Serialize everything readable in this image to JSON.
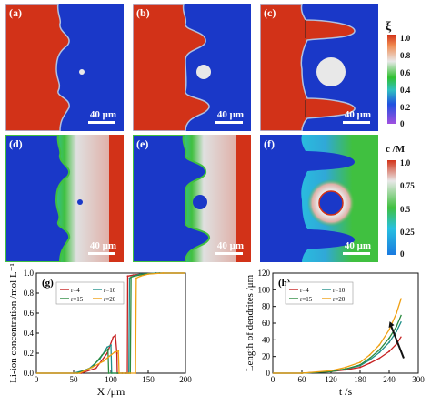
{
  "field_panels": [
    {
      "label": "(a)",
      "scale": "40 μm"
    },
    {
      "label": "(b)",
      "scale": "40 μm"
    },
    {
      "label": "(c)",
      "scale": "40 μm"
    },
    {
      "label": "(d)",
      "scale": "40 μm"
    },
    {
      "label": "(e)",
      "scale": "40 μm"
    },
    {
      "label": "(f)",
      "scale": "40 μm"
    }
  ],
  "colorbar_xi": {
    "title": "ξ",
    "ticks": [
      "1.0",
      "0.8",
      "0.6",
      "0.4",
      "0.2",
      "0"
    ]
  },
  "colorbar_c": {
    "title": "c /M",
    "ticks": [
      "1.0",
      "0.75",
      "0.5",
      "0.25",
      "0"
    ]
  },
  "colors": {
    "electrode": "#d23218",
    "electrolyte": "#1a38c8",
    "r4": "#c62020",
    "r10": "#20908a",
    "r15": "#2a8a3e",
    "r20": "#f0a012"
  },
  "chart_data": [
    {
      "type": "line",
      "panel": "(g)",
      "xlabel": "X /μm",
      "ylabel": "Li-ion concentration /mol L⁻¹",
      "xlim": [
        0,
        200
      ],
      "ylim": [
        0,
        1.0
      ],
      "xticks": [
        "0",
        "50",
        "100",
        "150",
        "200"
      ],
      "yticks": [
        "0.0",
        "0.2",
        "0.4",
        "0.6",
        "0.8",
        "1.0"
      ],
      "legend": "top-left",
      "series": [
        {
          "name": "r=4",
          "x": [
            0,
            60,
            80,
            95,
            103,
            106,
            108,
            108.5,
            115,
            120,
            122,
            122.5,
            130,
            140,
            160,
            200
          ],
          "y": [
            0,
            0,
            0.05,
            0.2,
            0.36,
            0.38,
            0.2,
            0,
            0,
            0,
            0,
            0.97,
            0.98,
            0.99,
            1.0,
            1.0
          ]
        },
        {
          "name": "r=10",
          "x": [
            0,
            50,
            70,
            85,
            95,
            100,
            101,
            110,
            124,
            125,
            130,
            140,
            160,
            200
          ],
          "y": [
            0,
            0,
            0.04,
            0.14,
            0.26,
            0.28,
            0,
            0,
            0,
            0.95,
            0.97,
            0.99,
            1.0,
            1.0
          ]
        },
        {
          "name": "r=15",
          "x": [
            0,
            55,
            75,
            88,
            96,
            97,
            110,
            126,
            127,
            132,
            145,
            165,
            200
          ],
          "y": [
            0,
            0,
            0.06,
            0.18,
            0.24,
            0,
            0,
            0,
            0.96,
            0.97,
            0.99,
            1.0,
            1.0
          ]
        },
        {
          "name": "r=20",
          "x": [
            0,
            58,
            75,
            90,
            98,
            105,
            110,
            111,
            125,
            133,
            134,
            140,
            150,
            170,
            200
          ],
          "y": [
            0,
            0,
            0.06,
            0.12,
            0.17,
            0.21,
            0.22,
            0,
            0,
            0,
            0.95,
            0.97,
            0.99,
            1.0,
            1.0
          ]
        }
      ]
    },
    {
      "type": "line",
      "panel": "(h)",
      "xlabel": "t /s",
      "ylabel": "Length of dendrites /μm",
      "xlim": [
        0,
        300
      ],
      "ylim": [
        0,
        120
      ],
      "xticks": [
        "0",
        "60",
        "120",
        "180",
        "240",
        "300"
      ],
      "yticks": [
        "0",
        "20",
        "40",
        "60",
        "80",
        "100",
        "120"
      ],
      "legend": "top-left",
      "series": [
        {
          "name": "r=4",
          "x": [
            0,
            60,
            120,
            150,
            180,
            200,
            220,
            240,
            255,
            265
          ],
          "y": [
            0,
            0,
            2,
            4,
            7,
            12,
            18,
            26,
            35,
            44
          ]
        },
        {
          "name": "r=10",
          "x": [
            0,
            60,
            120,
            150,
            180,
            200,
            220,
            240,
            255,
            265
          ],
          "y": [
            0,
            0,
            2,
            5,
            9,
            16,
            25,
            37,
            50,
            62
          ]
        },
        {
          "name": "r=15",
          "x": [
            0,
            60,
            120,
            150,
            180,
            200,
            220,
            240,
            255,
            265
          ],
          "y": [
            0,
            0,
            2,
            5,
            10,
            18,
            28,
            42,
            56,
            70
          ]
        },
        {
          "name": "r=20",
          "x": [
            0,
            60,
            120,
            150,
            180,
            200,
            220,
            240,
            255,
            265
          ],
          "y": [
            0,
            0,
            3,
            7,
            13,
            22,
            34,
            52,
            72,
            90
          ]
        }
      ]
    }
  ]
}
